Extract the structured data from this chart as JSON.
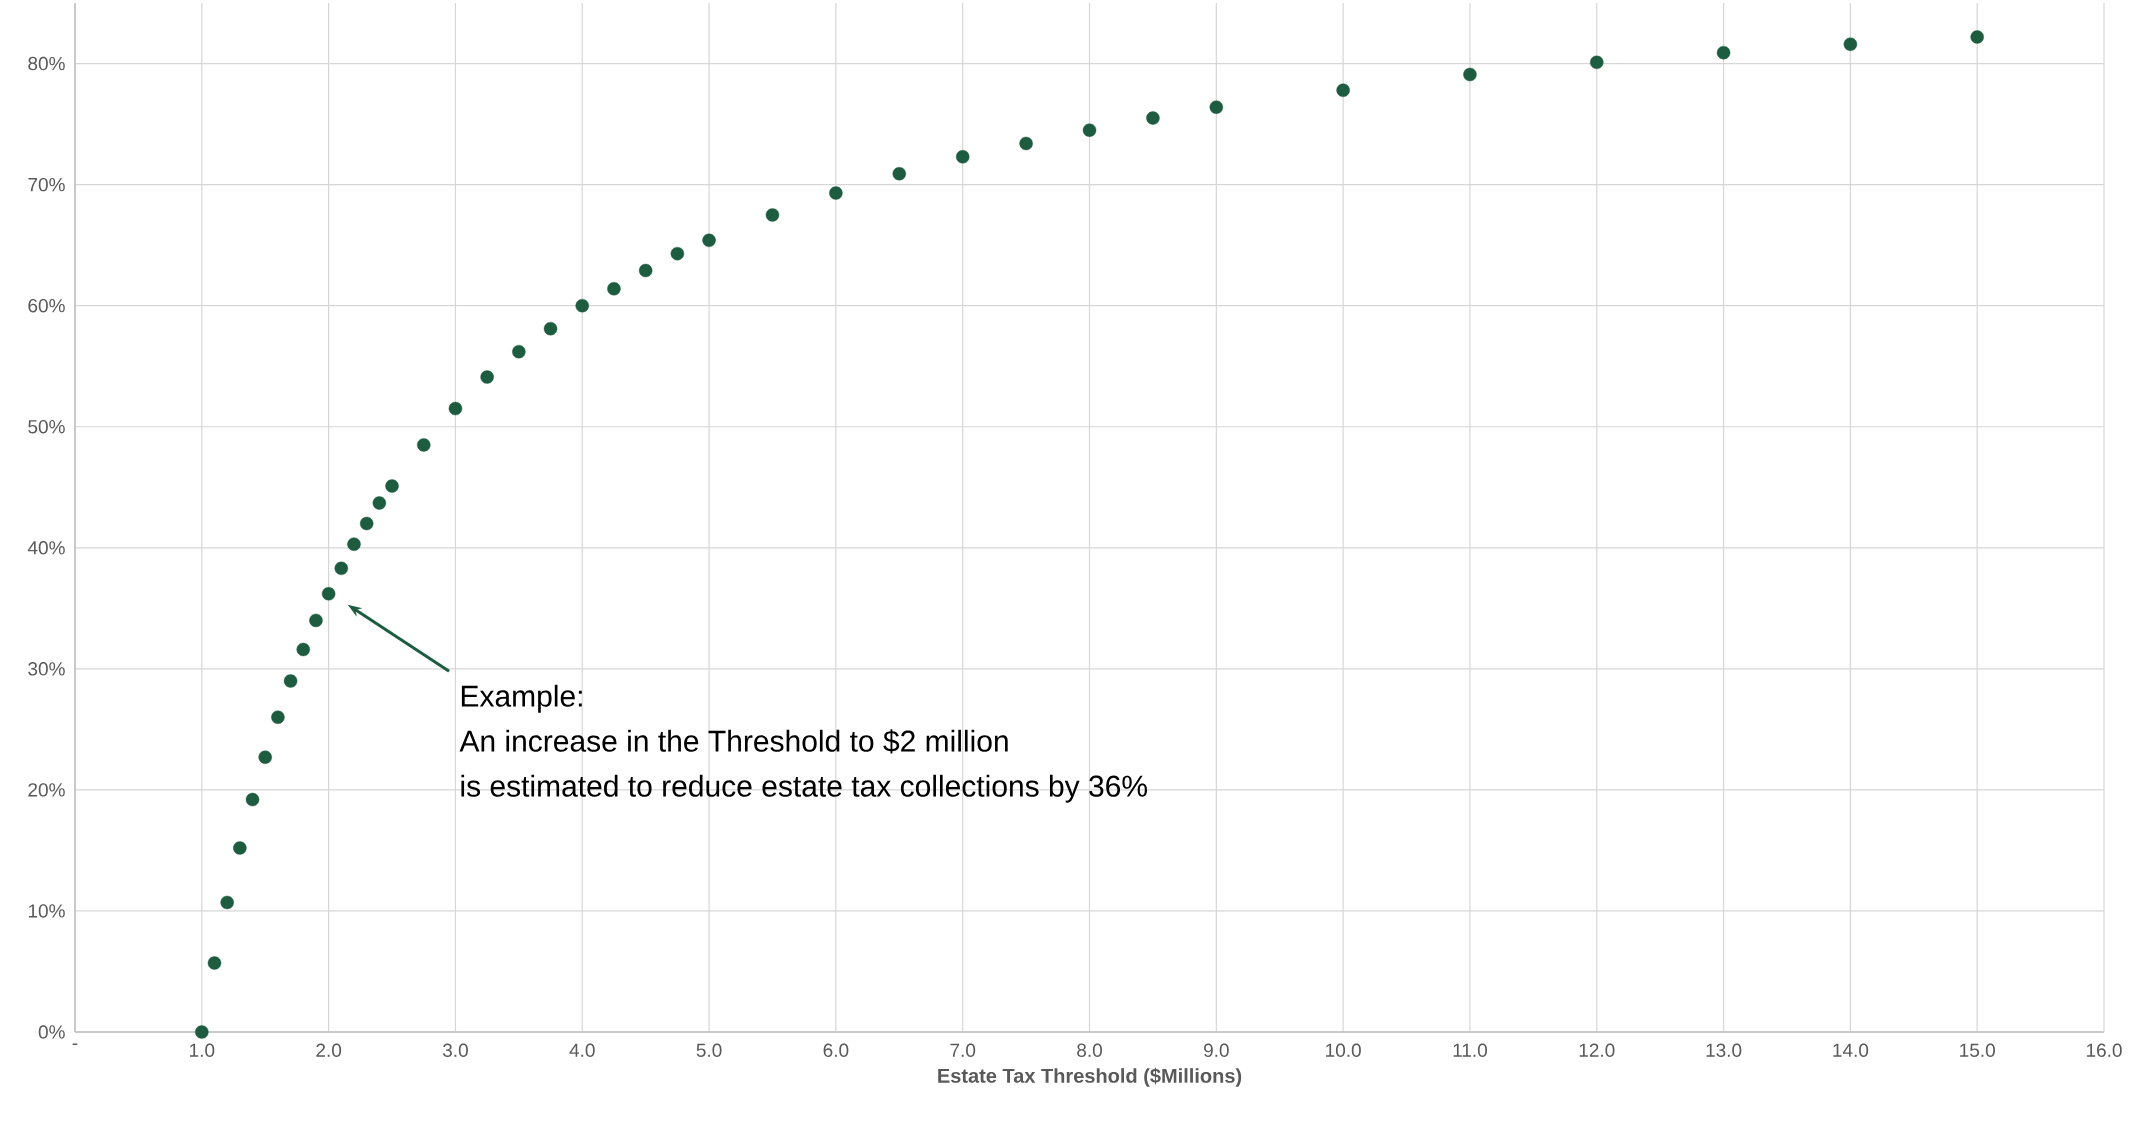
{
  "chart_data": {
    "type": "scatter",
    "xlabel": "Estate Tax Threshold ($Millions)",
    "x": [
      1.0,
      1.1,
      1.2,
      1.3,
      1.4,
      1.5,
      1.6,
      1.7,
      1.8,
      1.9,
      2.0,
      2.1,
      2.2,
      2.3,
      2.4,
      2.5,
      2.75,
      3.0,
      3.25,
      3.5,
      3.75,
      4.0,
      4.25,
      4.5,
      4.75,
      5.0,
      5.5,
      6.0,
      6.5,
      7.0,
      7.5,
      8.0,
      8.5,
      9.0,
      10.0,
      11.0,
      12.0,
      13.0,
      14.0,
      15.0
    ],
    "values": [
      0.0,
      5.7,
      10.7,
      15.2,
      19.2,
      22.7,
      26.0,
      29.0,
      31.6,
      34.0,
      36.2,
      38.3,
      40.3,
      42.0,
      43.7,
      45.1,
      48.5,
      51.5,
      54.1,
      56.2,
      58.1,
      60.0,
      61.4,
      62.9,
      64.3,
      65.4,
      67.5,
      69.3,
      70.9,
      72.3,
      73.4,
      74.5,
      75.5,
      76.4,
      77.8,
      79.1,
      80.1,
      80.9,
      81.6,
      82.2
    ],
    "color": "#1e5c40",
    "marker": "circle",
    "grid": true,
    "xlim": [
      0,
      16
    ],
    "ylim": [
      0,
      85
    ],
    "xticks": [
      {
        "value": 0,
        "label": "-"
      },
      {
        "value": 1,
        "label": "1.0"
      },
      {
        "value": 2,
        "label": "2.0"
      },
      {
        "value": 3,
        "label": "3.0"
      },
      {
        "value": 4,
        "label": "4.0"
      },
      {
        "value": 5,
        "label": "5.0"
      },
      {
        "value": 6,
        "label": "6.0"
      },
      {
        "value": 7,
        "label": "7.0"
      },
      {
        "value": 8,
        "label": "8.0"
      },
      {
        "value": 9,
        "label": "9.0"
      },
      {
        "value": 10,
        "label": "10.0"
      },
      {
        "value": 11,
        "label": "11.0"
      },
      {
        "value": 12,
        "label": "12.0"
      },
      {
        "value": 13,
        "label": "13.0"
      },
      {
        "value": 14,
        "label": "14.0"
      },
      {
        "value": 15,
        "label": "15.0"
      },
      {
        "value": 16,
        "label": "16.0"
      }
    ],
    "yticks": [
      {
        "value": 0,
        "label": "0%"
      },
      {
        "value": 10,
        "label": "10%"
      },
      {
        "value": 20,
        "label": "20%"
      },
      {
        "value": 30,
        "label": "30%"
      },
      {
        "value": 40,
        "label": "40%"
      },
      {
        "value": 50,
        "label": "50%"
      },
      {
        "value": 60,
        "label": "60%"
      },
      {
        "value": 70,
        "label": "70%"
      },
      {
        "value": 80,
        "label": "80%"
      }
    ],
    "annotations": [
      "Example:",
      "An increase in the Threshold to $2 million",
      "is estimated to reduce estate tax collections by 36%"
    ]
  }
}
